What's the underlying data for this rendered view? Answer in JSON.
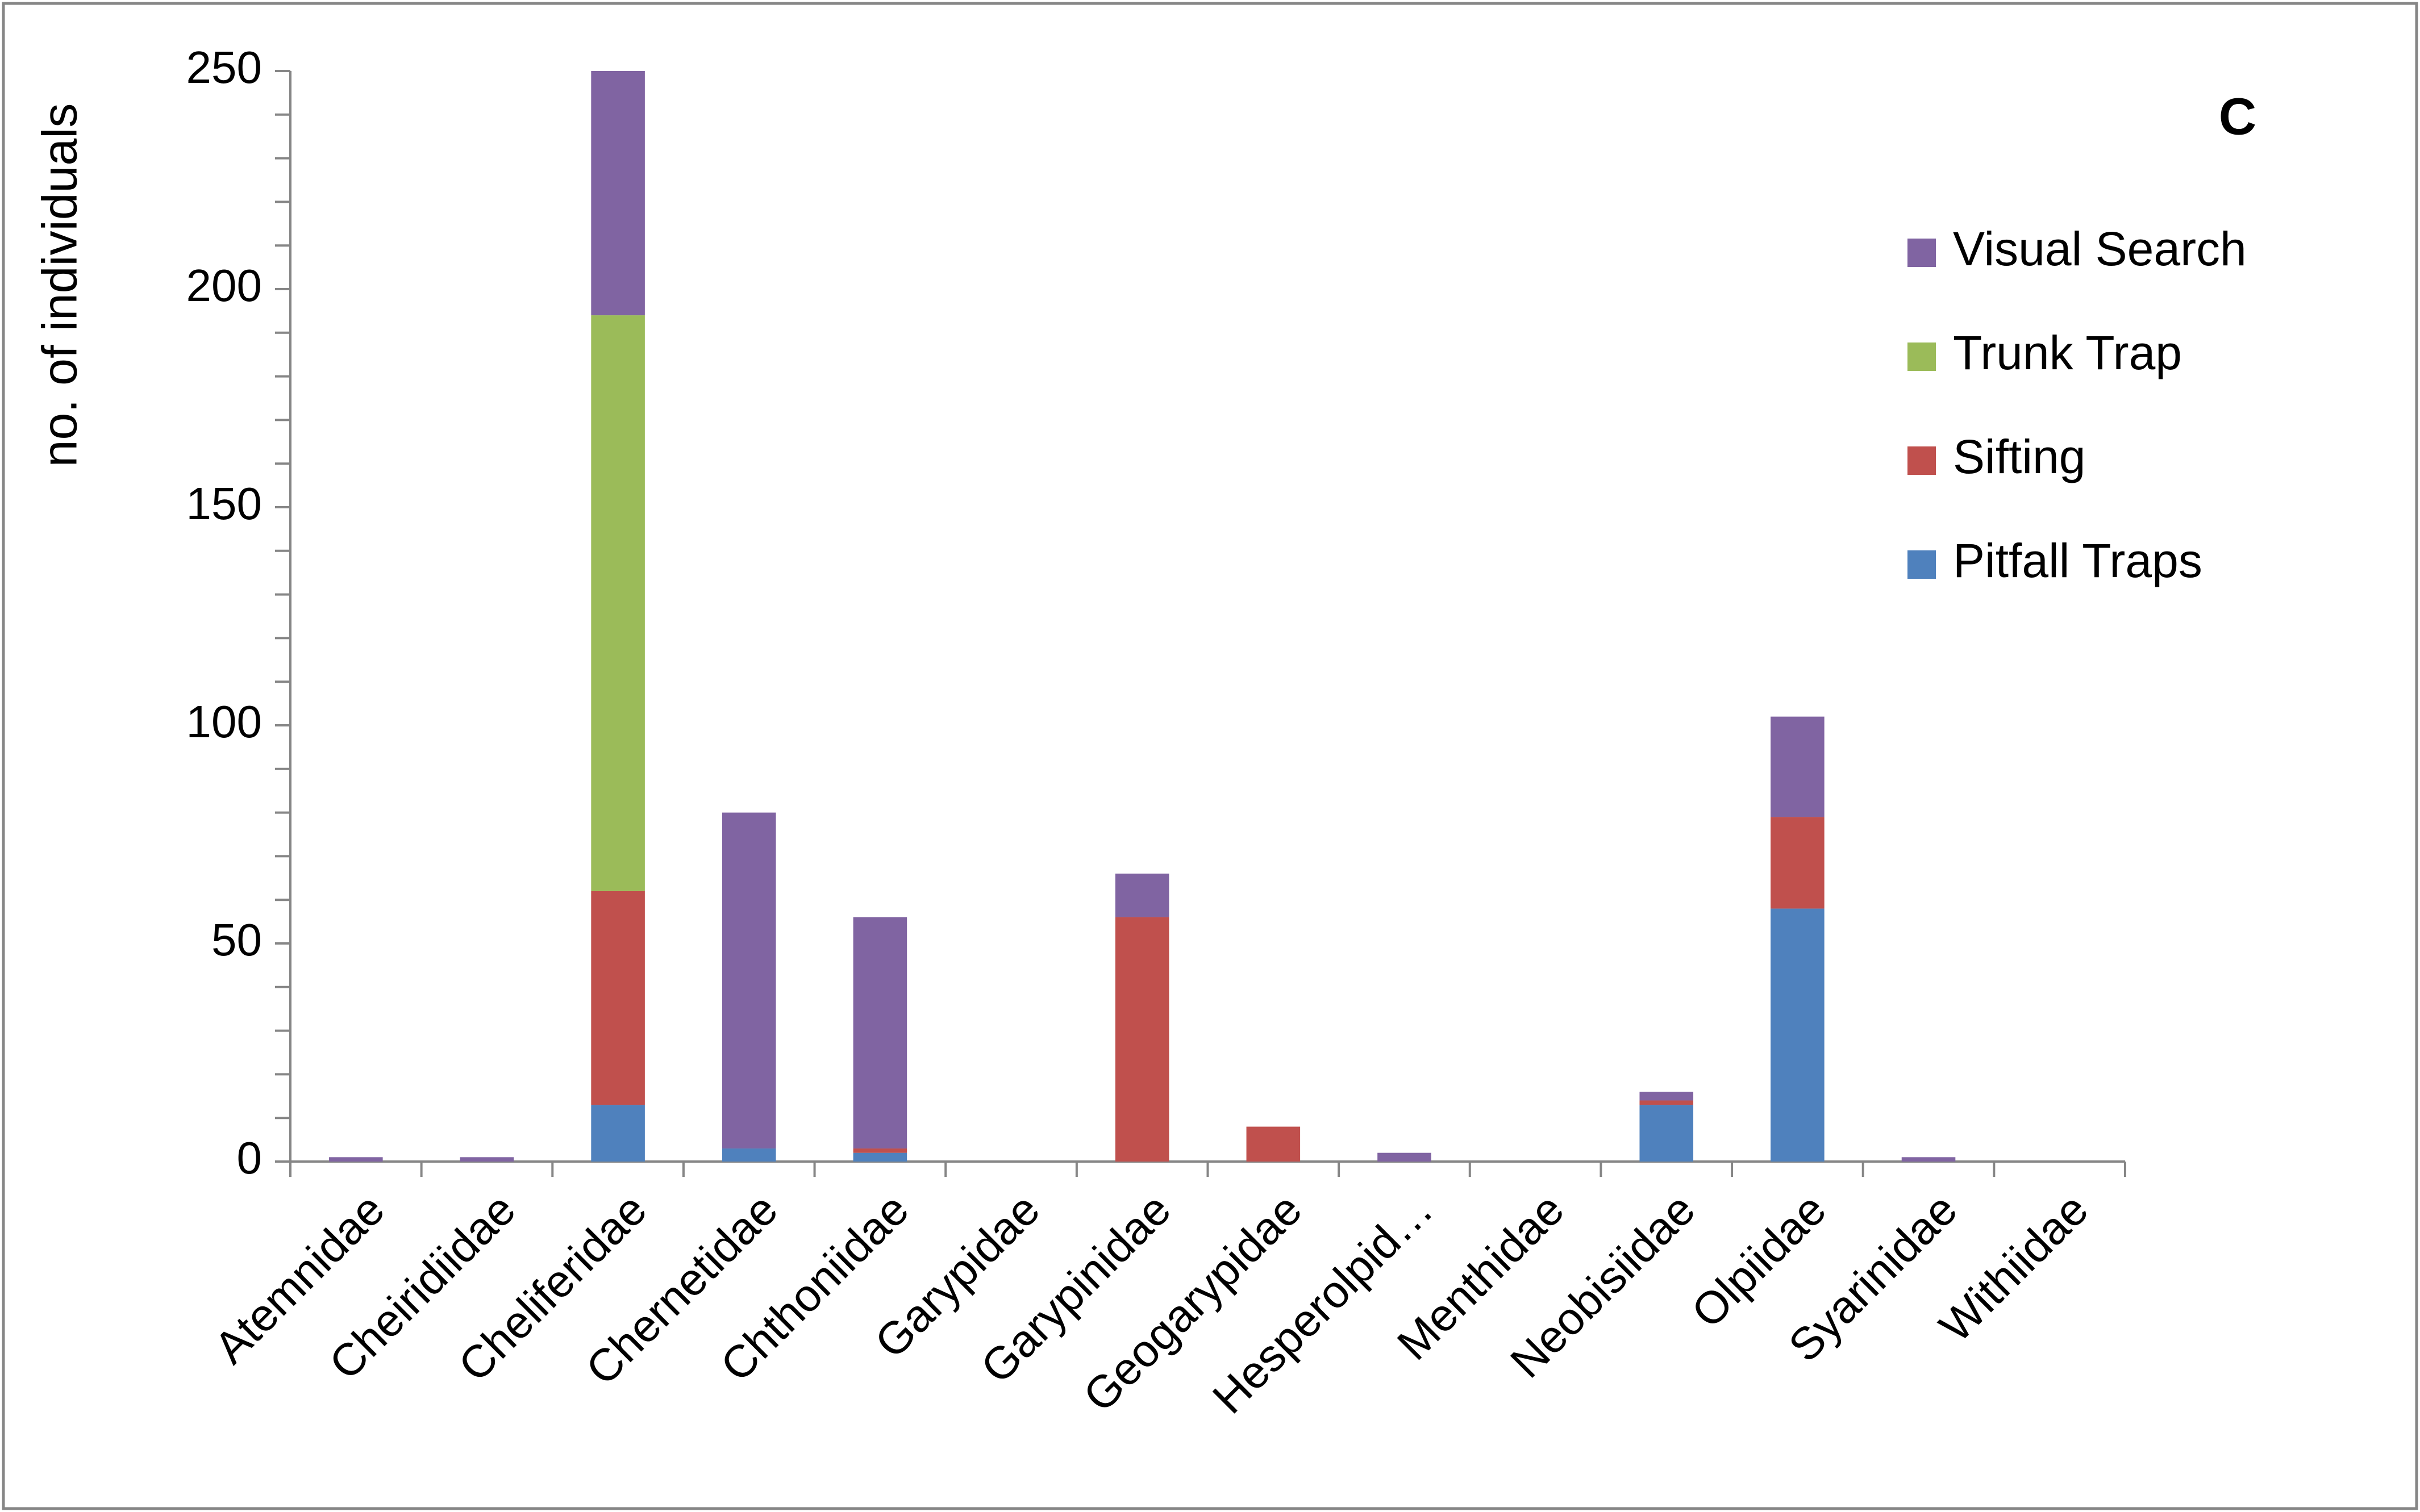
{
  "chart_data": {
    "type": "stacked-bar",
    "annotation": "C",
    "y_label": "no. of individuals",
    "categories": [
      "Atemnidae",
      "Cheiridiidae",
      "Cheliferidae",
      "Chernetidae",
      "Chthoniidae",
      "Garypidae",
      "Garypinidae",
      "Geogarypidae",
      "Hesperolpid…",
      "Menthidae",
      "Neobisiidae",
      "Olpiidae",
      "Syarinidae",
      "Withiidae"
    ],
    "series": [
      {
        "name": "Pitfall Traps",
        "color": "#4f81bd",
        "values": [
          0,
          0,
          13,
          3,
          2,
          0,
          0,
          0,
          0,
          0,
          13,
          58,
          0,
          0
        ]
      },
      {
        "name": "Sifting",
        "color": "#c0504d",
        "values": [
          0,
          0,
          49,
          0,
          1,
          0,
          56,
          8,
          0,
          0,
          1,
          21,
          0,
          0
        ]
      },
      {
        "name": "Trunk Trap",
        "color": "#9bbb59",
        "values": [
          0,
          0,
          132,
          0,
          0,
          0,
          0,
          0,
          0,
          0,
          0,
          0,
          0,
          0
        ]
      },
      {
        "name": "Visual Search",
        "color": "#8064a2",
        "values": [
          1,
          1,
          56,
          77,
          53,
          0,
          10,
          0,
          2,
          0,
          2,
          23,
          1,
          0
        ]
      }
    ],
    "ylim": [
      0,
      250
    ],
    "yticks": [
      0,
      50,
      100,
      150,
      200,
      250
    ],
    "minor_yticks": [
      10,
      20,
      30,
      40,
      60,
      70,
      80,
      90,
      110,
      120,
      130,
      140,
      160,
      170,
      180,
      190,
      210,
      220,
      230,
      240
    ],
    "legend": "right"
  }
}
